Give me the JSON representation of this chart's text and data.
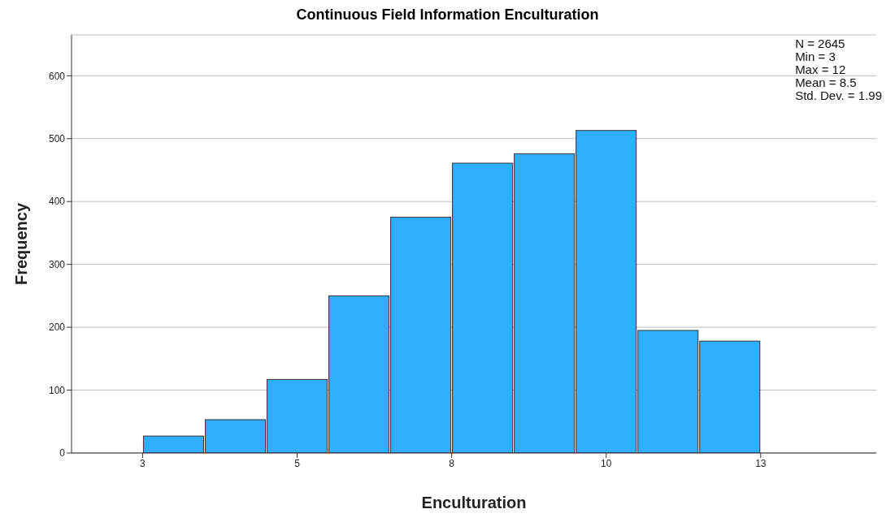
{
  "chart_data": {
    "type": "histogram",
    "title": "Continuous Field Information Enculturation",
    "xlabel": "Enculturation",
    "ylabel": "Frequency",
    "bins": [
      3,
      4,
      5,
      6,
      7,
      8,
      9,
      10,
      11,
      12,
      13
    ],
    "values": [
      27,
      53,
      117,
      250,
      375,
      461,
      476,
      513,
      195,
      178
    ],
    "color": "#31adfd",
    "xlim": [
      1.85,
      14.87
    ],
    "xticks": [
      3,
      {
        "value": 5.5,
        "label": "5"
      },
      8,
      {
        "value": 10.5,
        "label": "10"
      },
      13
    ],
    "ylim": [
      0,
      665
    ],
    "yticks": [
      0,
      100,
      200,
      300,
      400,
      500,
      600
    ],
    "grid": "y",
    "annotations": [
      "N = 2645",
      "Min = 3",
      "Max = 12",
      "Mean = 8.5",
      "Std. Dev. = 1.99"
    ]
  }
}
